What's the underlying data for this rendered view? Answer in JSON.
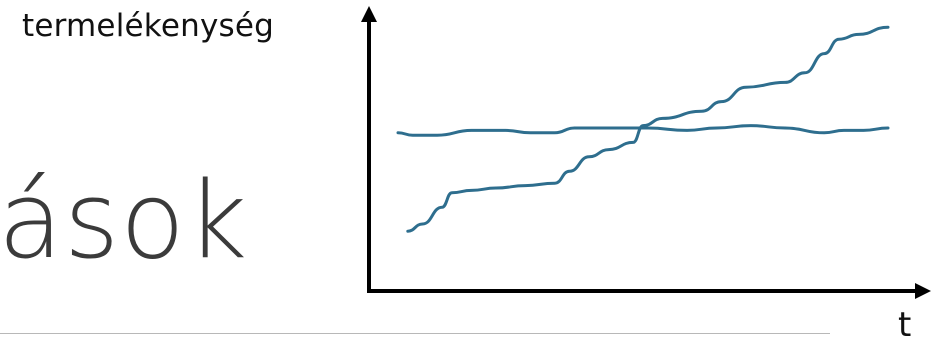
{
  "slide": {
    "title_fragment": "ások"
  },
  "chart_data": {
    "type": "line",
    "title": "",
    "xlabel": "t",
    "ylabel": "termelékenység",
    "xlim": [
      0,
      10
    ],
    "ylim": [
      0,
      10
    ],
    "grid": false,
    "legend": "none",
    "axis_color": "#000000",
    "series": [
      {
        "color": "#2e6e8e",
        "x": [
          0,
          0.3,
          0.8,
          1.5,
          2.2,
          2.7,
          3.2,
          3.6,
          4.3,
          5.1,
          5.9,
          6.5,
          7.2,
          7.9,
          8.7,
          9.1,
          9.5,
          10
        ],
        "y": [
          5.3,
          5.2,
          5.2,
          5.4,
          5.4,
          5.3,
          5.3,
          5.5,
          5.5,
          5.5,
          5.4,
          5.5,
          5.6,
          5.5,
          5.3,
          5.4,
          5.4,
          5.5
        ]
      },
      {
        "color": "#2e6e8e",
        "x": [
          0.2,
          0.5,
          0.9,
          1.1,
          1.5,
          2.0,
          2.6,
          3.2,
          3.5,
          3.9,
          4.3,
          4.8,
          5.0,
          5.4,
          6.2,
          6.6,
          7.1,
          7.9,
          8.3,
          8.7,
          9.0,
          9.4,
          10
        ],
        "y": [
          1.2,
          1.5,
          2.2,
          2.8,
          2.9,
          3.0,
          3.1,
          3.2,
          3.7,
          4.3,
          4.6,
          4.9,
          5.6,
          5.9,
          6.2,
          6.6,
          7.2,
          7.4,
          7.8,
          8.6,
          9.2,
          9.4,
          9.7
        ]
      }
    ]
  }
}
